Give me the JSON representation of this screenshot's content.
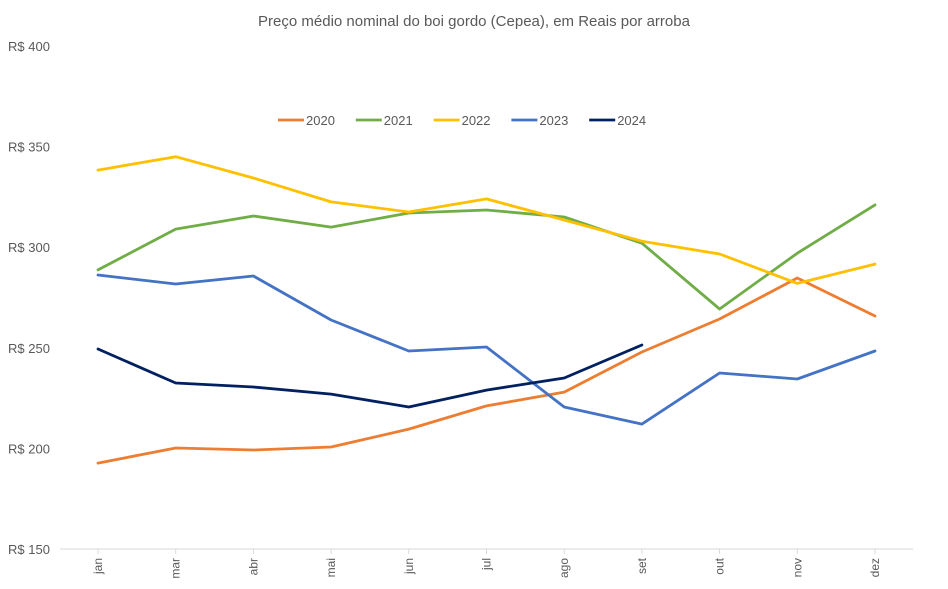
{
  "chart_data": {
    "type": "line",
    "title": "Preço médio nominal do boi gordo (Cepea), em Reais por arroba",
    "xlabel": "",
    "ylabel": "",
    "categories": [
      "jan",
      "mar",
      "abr",
      "mai",
      "jun",
      "jul",
      "ago",
      "set",
      "out",
      "nov",
      "dez"
    ],
    "ylim": [
      150,
      400
    ],
    "yticks": [
      150,
      200,
      250,
      300,
      350,
      400
    ],
    "ytick_prefix": "R$ ",
    "grid": false,
    "legend_position": "top-center",
    "series": [
      {
        "name": "2020",
        "color": "#ED7D31",
        "values": [
          192.7,
          200.2,
          199.2,
          200.7,
          209.6,
          221.1,
          228.0,
          247.9,
          264.3,
          284.7,
          265.8
        ]
      },
      {
        "name": "2021",
        "color": "#70AD47",
        "values": [
          288.7,
          309.0,
          315.5,
          310.0,
          317.0,
          318.5,
          315.0,
          302.0,
          269.3,
          297.0,
          321.0
        ]
      },
      {
        "name": "2022",
        "color": "#FFC000",
        "values": [
          338.3,
          345.0,
          334.4,
          322.5,
          317.5,
          324.0,
          313.5,
          303.0,
          296.6,
          282.0,
          291.6
        ]
      },
      {
        "name": "2023",
        "color": "#4472C4",
        "values": [
          286.2,
          281.7,
          285.7,
          263.8,
          248.4,
          250.4,
          220.6,
          212.1,
          237.5,
          234.5,
          248.4
        ]
      },
      {
        "name": "2024",
        "color": "#002060",
        "values": [
          249.4,
          232.5,
          230.5,
          227.0,
          220.6,
          229.0,
          235.0,
          251.4,
          null,
          null,
          null
        ]
      }
    ]
  }
}
